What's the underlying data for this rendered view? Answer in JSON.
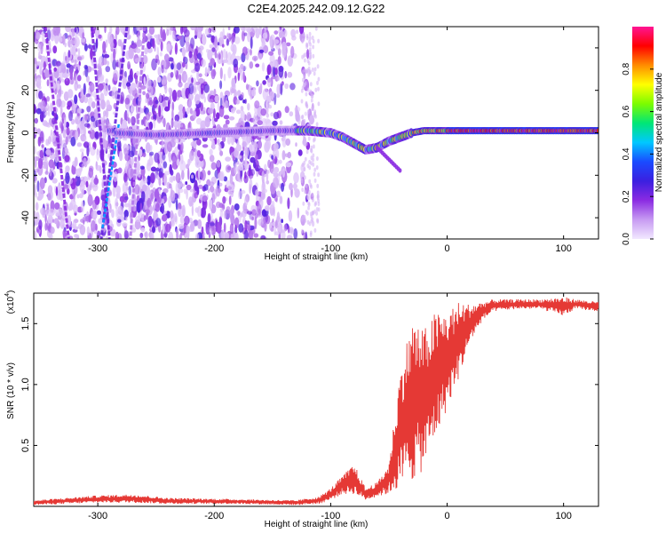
{
  "title": "C2E4.2025.242.09.12.G22",
  "chart_data": [
    {
      "type": "heatmap",
      "name": "spectrogram",
      "xlabel": "Height of straight line (km)",
      "ylabel": "Frequency (Hz)",
      "xlim": [
        -355,
        130
      ],
      "ylim": [
        -50,
        50
      ],
      "x_ticks": [
        -300,
        -200,
        -100,
        0,
        100
      ],
      "x_tick_labels": [
        "-300",
        "-200",
        "-100",
        "0",
        "100"
      ],
      "y_ticks": [
        -40,
        -20,
        0,
        20,
        40
      ],
      "y_tick_labels": [
        "-40",
        "-20",
        "0",
        "20",
        "40"
      ],
      "colorbar": {
        "label": "Normalized spectral amplitude",
        "range": [
          0,
          1
        ],
        "ticks": [
          0.0,
          0.2,
          0.4,
          0.6,
          0.8
        ],
        "tick_labels": [
          "0.0",
          "0.2",
          "0.4",
          "0.6",
          "0.8"
        ],
        "colors": [
          "#f2e8ff",
          "#c79bf2",
          "#8b2be2",
          "#3b1fe0",
          "#1a4bff",
          "#00c8ff",
          "#00e676",
          "#7cfc00",
          "#ffff00",
          "#ff8c00",
          "#ff0000",
          "#ff1493"
        ]
      },
      "signal_track": [
        {
          "x": -285,
          "y": 0
        },
        {
          "x": -250,
          "y": -1
        },
        {
          "x": -200,
          "y": 0
        },
        {
          "x": -150,
          "y": 1
        },
        {
          "x": -120,
          "y": 1
        },
        {
          "x": -100,
          "y": 0
        },
        {
          "x": -90,
          "y": -2
        },
        {
          "x": -80,
          "y": -5
        },
        {
          "x": -70,
          "y": -8
        },
        {
          "x": -60,
          "y": -7
        },
        {
          "x": -50,
          "y": -4
        },
        {
          "x": -40,
          "y": -2
        },
        {
          "x": -30,
          "y": 0
        },
        {
          "x": -20,
          "y": 1
        },
        {
          "x": 0,
          "y": 1
        },
        {
          "x": 50,
          "y": 1
        },
        {
          "x": 100,
          "y": 1
        },
        {
          "x": 130,
          "y": 1
        }
      ]
    },
    {
      "type": "line",
      "name": "snr",
      "xlabel": "Height of straight line (km)",
      "ylabel": "SNR (10 * v/v)",
      "multiplier_label": "(x10",
      "multiplier_exp": "4",
      "multiplier_close": ")",
      "xlim": [
        -355,
        130
      ],
      "ylim": [
        0,
        1.75
      ],
      "x_ticks": [
        -300,
        -200,
        -100,
        0,
        100
      ],
      "x_tick_labels": [
        "-300",
        "-200",
        "-100",
        "0",
        "100"
      ],
      "y_ticks": [
        0.5,
        1.0,
        1.5
      ],
      "y_tick_labels": [
        "0.5",
        "1.0",
        "1.5"
      ],
      "line_color": "#e53935",
      "envelope": [
        {
          "x": -355,
          "lo": 0.01,
          "hi": 0.05
        },
        {
          "x": -300,
          "lo": 0.03,
          "hi": 0.09
        },
        {
          "x": -270,
          "lo": 0.03,
          "hi": 0.1
        },
        {
          "x": -240,
          "lo": 0.02,
          "hi": 0.07
        },
        {
          "x": -180,
          "lo": 0.02,
          "hi": 0.06
        },
        {
          "x": -130,
          "lo": 0.01,
          "hi": 0.05
        },
        {
          "x": -110,
          "lo": 0.02,
          "hi": 0.08
        },
        {
          "x": -100,
          "lo": 0.05,
          "hi": 0.15
        },
        {
          "x": -90,
          "lo": 0.1,
          "hi": 0.25
        },
        {
          "x": -80,
          "lo": 0.1,
          "hi": 0.35
        },
        {
          "x": -70,
          "lo": 0.05,
          "hi": 0.15
        },
        {
          "x": -60,
          "lo": 0.08,
          "hi": 0.2
        },
        {
          "x": -50,
          "lo": 0.1,
          "hi": 0.35
        },
        {
          "x": -40,
          "lo": 0.15,
          "hi": 1.15
        },
        {
          "x": -30,
          "lo": 0.2,
          "hi": 1.55
        },
        {
          "x": -20,
          "lo": 0.3,
          "hi": 1.45
        },
        {
          "x": -10,
          "lo": 0.55,
          "hi": 1.6
        },
        {
          "x": 0,
          "lo": 0.8,
          "hi": 1.6
        },
        {
          "x": 10,
          "lo": 1.05,
          "hi": 1.68
        },
        {
          "x": 20,
          "lo": 1.35,
          "hi": 1.66
        },
        {
          "x": 30,
          "lo": 1.52,
          "hi": 1.68
        },
        {
          "x": 40,
          "lo": 1.6,
          "hi": 1.7
        },
        {
          "x": 60,
          "lo": 1.62,
          "hi": 1.7
        },
        {
          "x": 80,
          "lo": 1.62,
          "hi": 1.7
        },
        {
          "x": 100,
          "lo": 1.56,
          "hi": 1.72
        },
        {
          "x": 110,
          "lo": 1.62,
          "hi": 1.7
        },
        {
          "x": 130,
          "lo": 1.6,
          "hi": 1.68
        }
      ]
    }
  ]
}
